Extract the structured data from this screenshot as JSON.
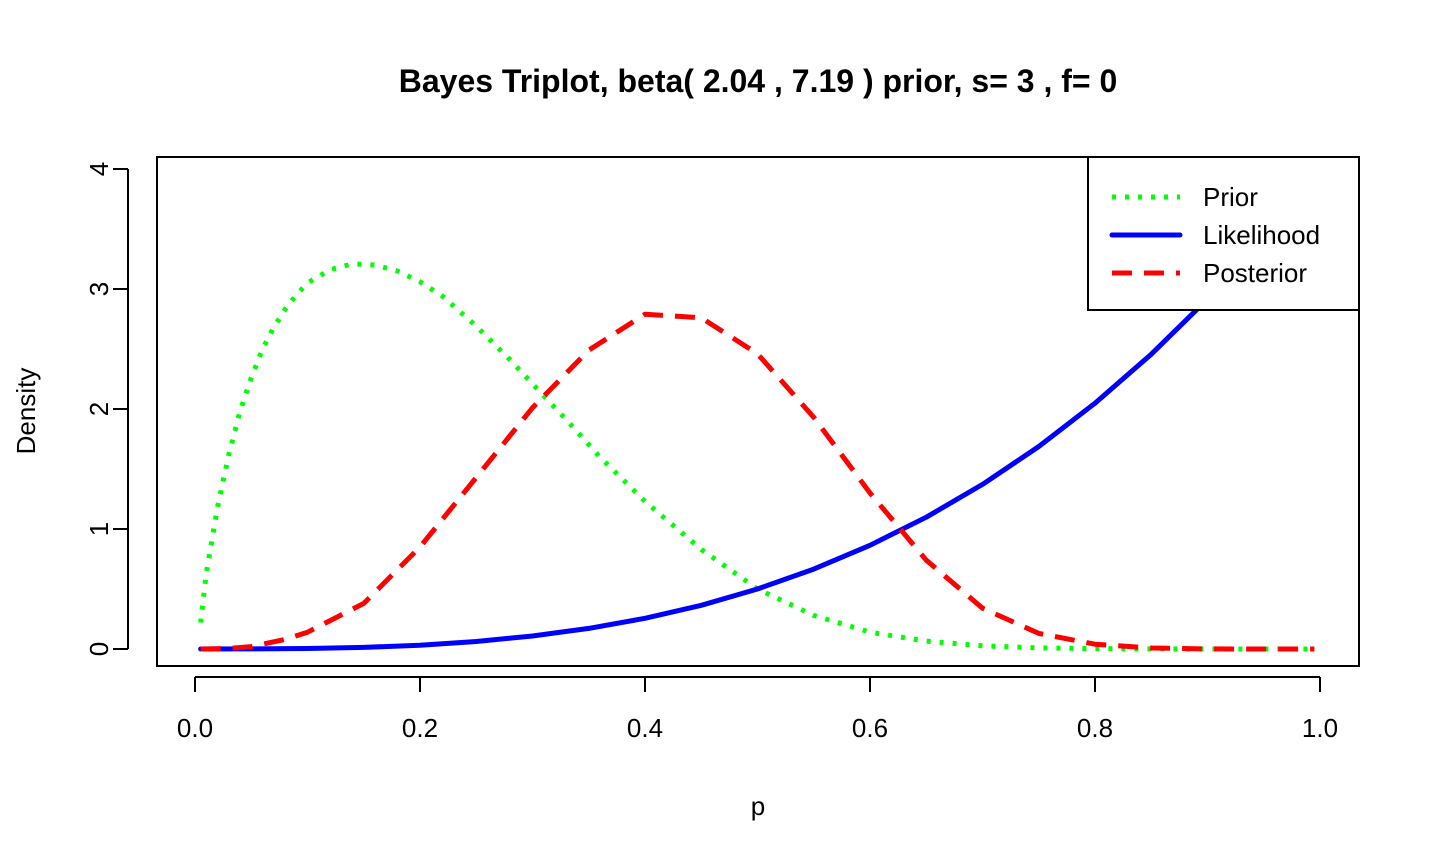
{
  "chart_data": {
    "type": "line",
    "title": "Bayes Triplot, beta( 2.04 , 7.19 ) prior, s= 3 , f= 0",
    "xlabel": "p",
    "ylabel": "Density",
    "xlim": [
      0,
      1
    ],
    "ylim": [
      0,
      4
    ],
    "x_ticks": [
      "0.0",
      "0.2",
      "0.4",
      "0.6",
      "0.8",
      "1.0"
    ],
    "y_ticks": [
      "0",
      "1",
      "2",
      "3",
      "4"
    ],
    "legend_position": "top-right",
    "series": [
      {
        "name": "Prior",
        "color": "#00ff00",
        "line_style": "dotted",
        "points": [
          [
            0.005,
            0.22
          ],
          [
            0.01,
            0.63
          ],
          [
            0.02,
            1.18
          ],
          [
            0.03,
            1.62
          ],
          [
            0.04,
            1.98
          ],
          [
            0.05,
            2.26
          ],
          [
            0.06,
            2.5
          ],
          [
            0.07,
            2.68
          ],
          [
            0.08,
            2.83
          ],
          [
            0.09,
            2.95
          ],
          [
            0.1,
            3.05
          ],
          [
            0.12,
            3.16
          ],
          [
            0.14,
            3.21
          ],
          [
            0.16,
            3.2
          ],
          [
            0.18,
            3.15
          ],
          [
            0.2,
            3.06
          ],
          [
            0.22,
            2.94
          ],
          [
            0.25,
            2.69
          ],
          [
            0.28,
            2.41
          ],
          [
            0.3,
            2.21
          ],
          [
            0.33,
            1.91
          ],
          [
            0.36,
            1.6
          ],
          [
            0.4,
            1.23
          ],
          [
            0.45,
            0.83
          ],
          [
            0.5,
            0.5
          ],
          [
            0.55,
            0.28
          ],
          [
            0.6,
            0.14
          ],
          [
            0.65,
            0.066
          ],
          [
            0.7,
            0.027
          ],
          [
            0.75,
            0.009
          ],
          [
            0.8,
            0.003
          ],
          [
            0.85,
            0.0007
          ],
          [
            0.9,
            0.0001
          ],
          [
            0.95,
            0.0
          ],
          [
            0.995,
            0.0
          ]
        ]
      },
      {
        "name": "Likelihood",
        "color": "#0000ff",
        "line_style": "solid",
        "points": [
          [
            0.005,
            0.0
          ],
          [
            0.05,
            0.0005
          ],
          [
            0.1,
            0.004
          ],
          [
            0.15,
            0.0135
          ],
          [
            0.2,
            0.032
          ],
          [
            0.25,
            0.0625
          ],
          [
            0.3,
            0.108
          ],
          [
            0.35,
            0.1715
          ],
          [
            0.4,
            0.256
          ],
          [
            0.45,
            0.3645
          ],
          [
            0.5,
            0.5
          ],
          [
            0.55,
            0.6655
          ],
          [
            0.6,
            0.864
          ],
          [
            0.65,
            1.0985
          ],
          [
            0.7,
            1.372
          ],
          [
            0.75,
            1.6875
          ],
          [
            0.8,
            2.048
          ],
          [
            0.85,
            2.4565
          ],
          [
            0.9,
            2.916
          ],
          [
            0.95,
            3.4295
          ],
          [
            0.995,
            3.94
          ]
        ]
      },
      {
        "name": "Posterior",
        "color": "#ff0000",
        "line_style": "dashed",
        "points": [
          [
            0.005,
            0.0
          ],
          [
            0.03,
            0.005
          ],
          [
            0.05,
            0.02
          ],
          [
            0.08,
            0.08
          ],
          [
            0.1,
            0.14
          ],
          [
            0.15,
            0.38
          ],
          [
            0.2,
            0.85
          ],
          [
            0.25,
            1.43
          ],
          [
            0.3,
            2.01
          ],
          [
            0.35,
            2.49
          ],
          [
            0.4,
            2.79
          ],
          [
            0.45,
            2.76
          ],
          [
            0.5,
            2.46
          ],
          [
            0.55,
            1.93
          ],
          [
            0.6,
            1.3
          ],
          [
            0.65,
            0.74
          ],
          [
            0.7,
            0.34
          ],
          [
            0.75,
            0.13
          ],
          [
            0.8,
            0.04
          ],
          [
            0.85,
            0.008
          ],
          [
            0.9,
            0.001
          ],
          [
            0.95,
            0.0
          ],
          [
            0.995,
            0.0
          ]
        ]
      }
    ]
  }
}
